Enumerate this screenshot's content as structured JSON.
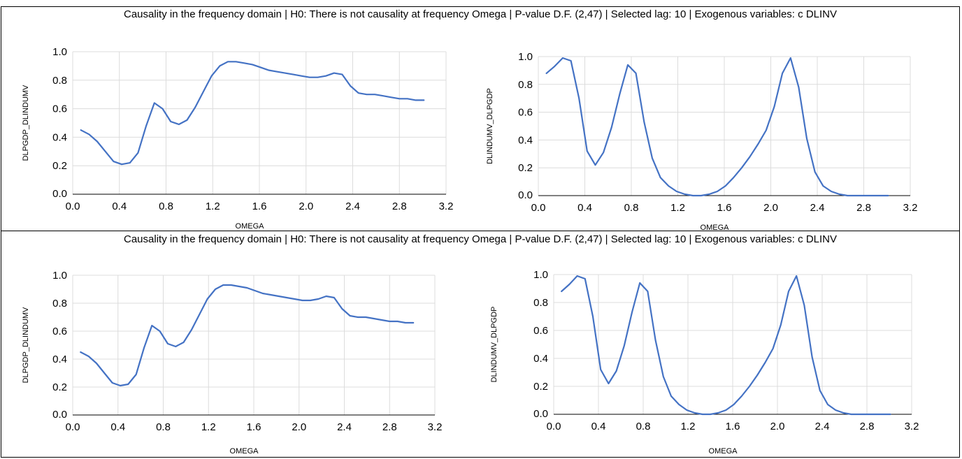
{
  "panels": [
    {
      "title": "Causality in the frequency domain | H0: There is not causality at frequency Omega | P-value D.F. (2,47) | Selected lag: 10 | Exogenous variables: c DLINV"
    },
    {
      "title": "Causality in the frequency domain | H0: There is not causality at frequency Omega | P-value D.F. (2,47) | Selected lag: 10 | Exogenous variables: c DLINV"
    }
  ],
  "chart_data": [
    {
      "type": "line",
      "xlabel": "OMEGA",
      "ylabel": "DLPGDP_DLINDUMV",
      "xlim": [
        0,
        3.2
      ],
      "ylim": [
        0,
        1.0
      ],
      "xticks": [
        "0.0",
        "0.4",
        "0.8",
        "1.2",
        "1.6",
        "2.0",
        "2.4",
        "2.8",
        "3.2"
      ],
      "yticks": [
        "0.0",
        "0.2",
        "0.4",
        "0.6",
        "0.8",
        "1.0"
      ],
      "series": [
        {
          "x": [
            0.07,
            0.14,
            0.21,
            0.28,
            0.35,
            0.42,
            0.49,
            0.56,
            0.63,
            0.7,
            0.77,
            0.84,
            0.91,
            0.98,
            1.05,
            1.12,
            1.19,
            1.26,
            1.33,
            1.4,
            1.47,
            1.54,
            1.61,
            1.68,
            1.75,
            1.82,
            1.89,
            1.96,
            2.03,
            2.1,
            2.17,
            2.24,
            2.31,
            2.38,
            2.45,
            2.52,
            2.59,
            2.66,
            2.73,
            2.8,
            2.87,
            2.94,
            3.01
          ],
          "y": [
            0.45,
            0.42,
            0.37,
            0.3,
            0.23,
            0.21,
            0.22,
            0.29,
            0.48,
            0.64,
            0.6,
            0.51,
            0.49,
            0.52,
            0.61,
            0.72,
            0.83,
            0.9,
            0.93,
            0.93,
            0.92,
            0.91,
            0.89,
            0.87,
            0.86,
            0.85,
            0.84,
            0.83,
            0.82,
            0.82,
            0.83,
            0.85,
            0.84,
            0.76,
            0.71,
            0.7,
            0.7,
            0.69,
            0.68,
            0.67,
            0.67,
            0.66,
            0.66
          ]
        }
      ]
    },
    {
      "type": "line",
      "xlabel": "OMEGA",
      "ylabel": "DLINDUMV_DLPGDP",
      "xlim": [
        0,
        3.2
      ],
      "ylim": [
        0,
        1.0
      ],
      "xticks": [
        "0.0",
        "0.4",
        "0.8",
        "1.2",
        "1.6",
        "2.0",
        "2.4",
        "2.8",
        "3.2"
      ],
      "yticks": [
        "0.0",
        "0.2",
        "0.4",
        "0.6",
        "0.8",
        "1.0"
      ],
      "series": [
        {
          "x": [
            0.07,
            0.14,
            0.21,
            0.28,
            0.35,
            0.42,
            0.49,
            0.56,
            0.63,
            0.7,
            0.77,
            0.84,
            0.91,
            0.98,
            1.05,
            1.12,
            1.19,
            1.26,
            1.33,
            1.4,
            1.47,
            1.54,
            1.61,
            1.68,
            1.75,
            1.82,
            1.89,
            1.96,
            2.03,
            2.1,
            2.17,
            2.24,
            2.31,
            2.38,
            2.45,
            2.52,
            2.59,
            2.66,
            2.73,
            2.8,
            2.87,
            2.94,
            3.01
          ],
          "y": [
            0.88,
            0.93,
            0.99,
            0.97,
            0.7,
            0.32,
            0.22,
            0.31,
            0.49,
            0.73,
            0.94,
            0.88,
            0.53,
            0.27,
            0.13,
            0.07,
            0.03,
            0.01,
            0.0,
            0.0,
            0.01,
            0.03,
            0.07,
            0.13,
            0.2,
            0.28,
            0.37,
            0.47,
            0.64,
            0.88,
            0.99,
            0.78,
            0.41,
            0.17,
            0.07,
            0.03,
            0.01,
            0.0,
            0.0,
            0.0,
            0.0,
            0.0,
            0.0
          ]
        }
      ]
    },
    {
      "type": "line",
      "xlabel": "OMEGA",
      "ylabel": "DLPGDP_DLINDUMV",
      "xlim": [
        0,
        3.2
      ],
      "ylim": [
        0,
        1.0
      ],
      "xticks": [
        "0.0",
        "0.4",
        "0.8",
        "1.2",
        "1.6",
        "2.0",
        "2.4",
        "2.8",
        "3.2"
      ],
      "yticks": [
        "0.0",
        "0.2",
        "0.4",
        "0.6",
        "0.8",
        "1.0"
      ],
      "series": [
        {
          "x": [
            0.07,
            0.14,
            0.21,
            0.28,
            0.35,
            0.42,
            0.49,
            0.56,
            0.63,
            0.7,
            0.77,
            0.84,
            0.91,
            0.98,
            1.05,
            1.12,
            1.19,
            1.26,
            1.33,
            1.4,
            1.47,
            1.54,
            1.61,
            1.68,
            1.75,
            1.82,
            1.89,
            1.96,
            2.03,
            2.1,
            2.17,
            2.24,
            2.31,
            2.38,
            2.45,
            2.52,
            2.59,
            2.66,
            2.73,
            2.8,
            2.87,
            2.94,
            3.01
          ],
          "y": [
            0.45,
            0.42,
            0.37,
            0.3,
            0.23,
            0.21,
            0.22,
            0.29,
            0.48,
            0.64,
            0.6,
            0.51,
            0.49,
            0.52,
            0.61,
            0.72,
            0.83,
            0.9,
            0.93,
            0.93,
            0.92,
            0.91,
            0.89,
            0.87,
            0.86,
            0.85,
            0.84,
            0.83,
            0.82,
            0.82,
            0.83,
            0.85,
            0.84,
            0.76,
            0.71,
            0.7,
            0.7,
            0.69,
            0.68,
            0.67,
            0.67,
            0.66,
            0.66
          ]
        }
      ]
    },
    {
      "type": "line",
      "xlabel": "OMEGA",
      "ylabel": "DLINDUMV_DLPGDP",
      "xlim": [
        0,
        3.2
      ],
      "ylim": [
        0,
        1.0
      ],
      "xticks": [
        "0.0",
        "0.4",
        "0.8",
        "1.2",
        "1.6",
        "2.0",
        "2.4",
        "2.8",
        "3.2"
      ],
      "yticks": [
        "0.0",
        "0.2",
        "0.4",
        "0.6",
        "0.8",
        "1.0"
      ],
      "series": [
        {
          "x": [
            0.07,
            0.14,
            0.21,
            0.28,
            0.35,
            0.42,
            0.49,
            0.56,
            0.63,
            0.7,
            0.77,
            0.84,
            0.91,
            0.98,
            1.05,
            1.12,
            1.19,
            1.26,
            1.33,
            1.4,
            1.47,
            1.54,
            1.61,
            1.68,
            1.75,
            1.82,
            1.89,
            1.96,
            2.03,
            2.1,
            2.17,
            2.24,
            2.31,
            2.38,
            2.45,
            2.52,
            2.59,
            2.66,
            2.73,
            2.8,
            2.87,
            2.94,
            3.01
          ],
          "y": [
            0.88,
            0.93,
            0.99,
            0.97,
            0.7,
            0.32,
            0.22,
            0.31,
            0.49,
            0.73,
            0.94,
            0.88,
            0.53,
            0.27,
            0.13,
            0.07,
            0.03,
            0.01,
            0.0,
            0.0,
            0.01,
            0.03,
            0.07,
            0.13,
            0.2,
            0.28,
            0.37,
            0.47,
            0.64,
            0.88,
            0.99,
            0.78,
            0.41,
            0.17,
            0.07,
            0.03,
            0.01,
            0.0,
            0.0,
            0.0,
            0.0,
            0.0,
            0.0
          ]
        }
      ]
    }
  ]
}
